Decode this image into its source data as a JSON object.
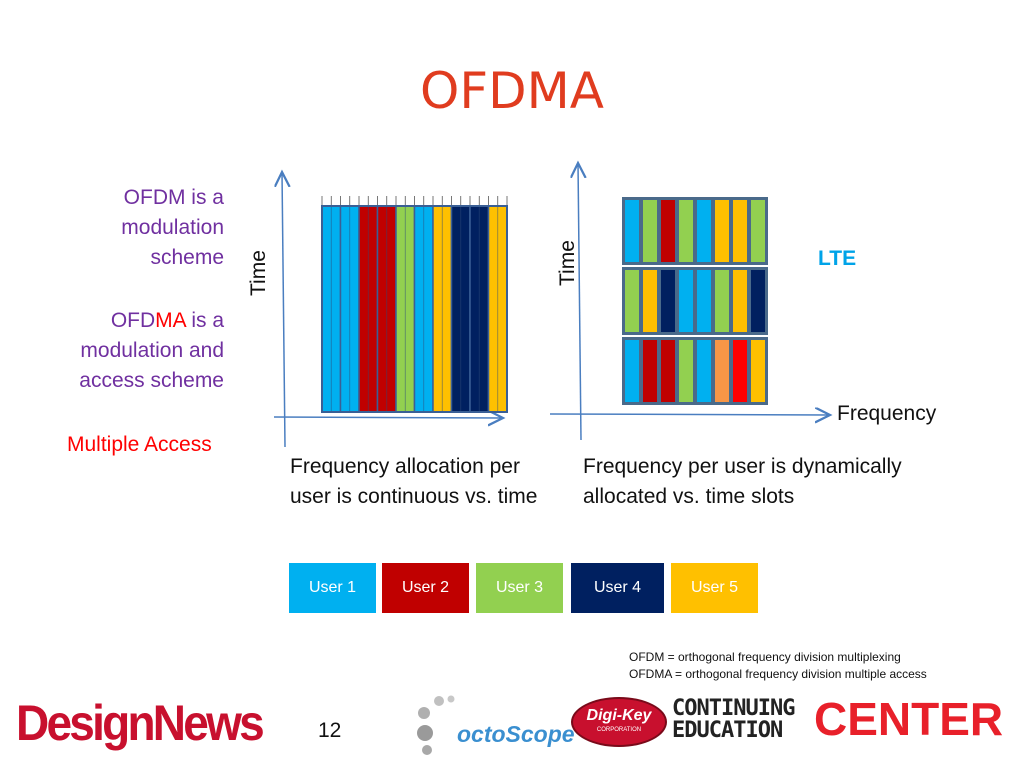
{
  "title": "OFDMA",
  "sidebar": {
    "ofdm_line1": "OFDM is a",
    "ofdm_line2": "modulation",
    "ofdm_line3": "scheme",
    "ofdma_prefix": "OFD",
    "ofdma_highlight": "MA",
    "ofdma_suffix": " is a",
    "ofdma_line2": "modulation and",
    "ofdma_line3": "access scheme",
    "multiple_access": "Multiple Access"
  },
  "left_diagram": {
    "ylabel": "Time",
    "caption_line1": "Frequency allocation per",
    "caption_line2": "user is continuous vs. time",
    "columns": [
      1,
      1,
      2,
      2,
      3,
      1,
      5,
      4,
      4,
      5
    ]
  },
  "right_diagram": {
    "ylabel": "Time",
    "xlabel": "Frequency",
    "tag": "LTE",
    "caption_line1": "Frequency per user is dynamically",
    "caption_line2": "allocated vs. time slots",
    "rows": [
      [
        1,
        3,
        2,
        3,
        1,
        5,
        5,
        3,
        6
      ],
      [
        3,
        5,
        4,
        1,
        1,
        3,
        5,
        4,
        3
      ],
      [
        1,
        2,
        2,
        3,
        1,
        7,
        6,
        5
      ]
    ]
  },
  "legend": [
    {
      "label": "User 1",
      "color": "#00b0f0"
    },
    {
      "label": "User 2",
      "color": "#c00000"
    },
    {
      "label": "User 3",
      "color": "#92d050"
    },
    {
      "label": "User 4",
      "color": "#002060"
    },
    {
      "label": "User 5",
      "color": "#ffc000"
    }
  ],
  "extra_colors": {
    "orange": "#f79646",
    "red": "#ff0000"
  },
  "abbreviations": {
    "ofdm": "OFDM = orthogonal frequency division multiplexing",
    "ofdma": "OFDMA = orthogonal frequency division multiple access"
  },
  "footer": {
    "page_number": "12",
    "logo_designnews": "DesignNews",
    "logo_octoscope": "octoScope",
    "logo_digikey": "Digi-Key",
    "logo_digikey_sub": "CORPORATION",
    "logo_ce_line1": "CONTINUING",
    "logo_ce_line2": "EDUCATION",
    "logo_ce_center": "CENTER"
  }
}
